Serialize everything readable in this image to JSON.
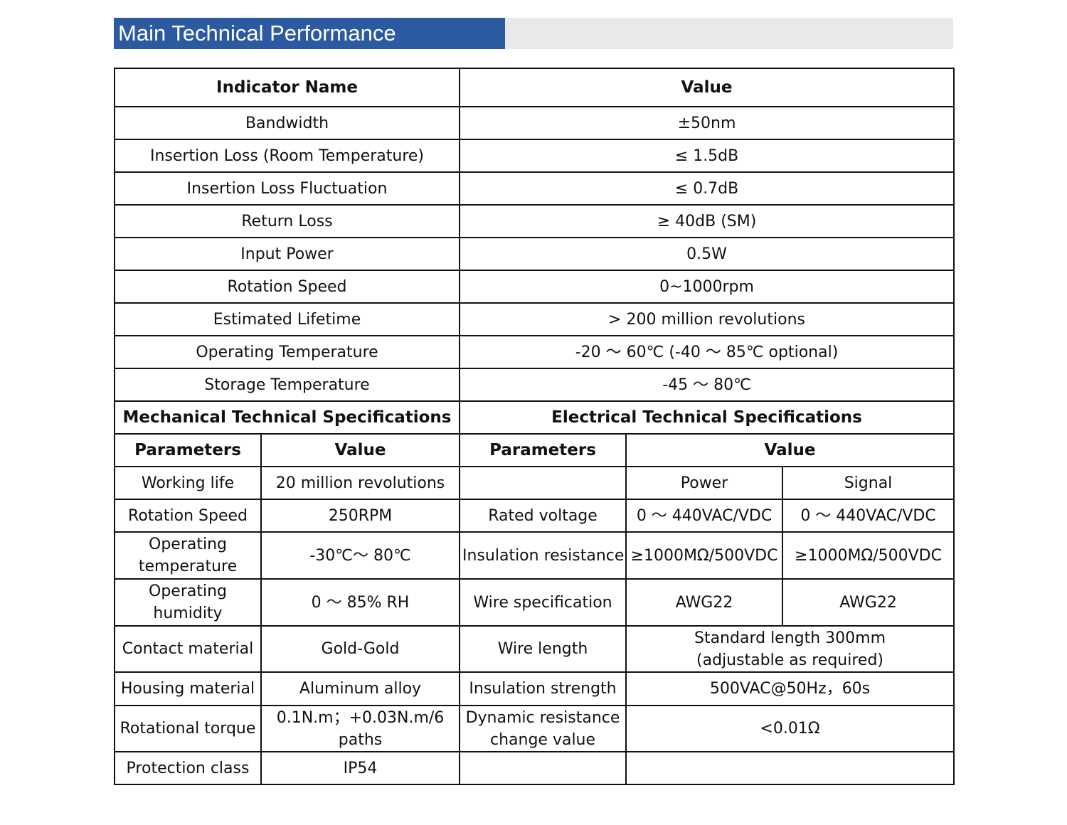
{
  "header": {
    "title": "Main Technical Performance"
  },
  "main_table": {
    "headers": [
      "Indicator Name",
      "Value"
    ],
    "rows": [
      {
        "name": "Bandwidth",
        "value": "±50nm"
      },
      {
        "name": "Insertion Loss (Room Temperature)",
        "value": "≤ 1.5dB"
      },
      {
        "name": "Insertion Loss Fluctuation",
        "value": "≤ 0.7dB"
      },
      {
        "name": "Return Loss",
        "value": "≥ 40dB (SM)"
      },
      {
        "name": "Input Power",
        "value": "0.5W"
      },
      {
        "name": "Rotation Speed",
        "value": "0~1000rpm"
      },
      {
        "name": "Estimated Lifetime",
        "value": "> 200 million revolutions"
      },
      {
        "name": "Operating Temperature",
        "value": "-20 ～ 60℃ (-40 ～ 85℃ optional)"
      },
      {
        "name": "Storage Temperature",
        "value": "-45 ～ 80℃"
      }
    ]
  },
  "sections": {
    "mechanical": "Mechanical Technical Specifications",
    "electrical": "Electrical Technical Specifications"
  },
  "sub_headers": {
    "mech_parameters": "Parameters",
    "mech_value": "Value",
    "elec_parameters": "Parameters",
    "elec_value": "Value"
  },
  "elec_value_columns": {
    "power": "Power",
    "signal": "Signal"
  },
  "mechanical_rows": [
    {
      "param": "Working life",
      "value": "20 million revolutions"
    },
    {
      "param": "Rotation Speed",
      "value": "250RPM"
    },
    {
      "param": "Operating temperature",
      "value": "-30℃～ 80℃"
    },
    {
      "param": "Operating humidity",
      "value": "0 ～ 85% RH"
    },
    {
      "param": "Contact material",
      "value": "Gold-Gold"
    },
    {
      "param": "Housing material",
      "value": "Aluminum alloy"
    },
    {
      "param": "Rotational torque",
      "value": "0.1N.m；+0.03N.m/6 paths"
    },
    {
      "param": "Protection class",
      "value": "IP54"
    }
  ],
  "electrical_rows": {
    "rated_voltage": {
      "param": "Rated voltage",
      "power": "0 ～ 440VAC/VDC",
      "signal": "0 ～ 440VAC/VDC"
    },
    "insulation_resistance": {
      "param": "Insulation resistance",
      "power": "≥1000MΩ/500VDC",
      "signal": "≥1000MΩ/500VDC"
    },
    "wire_specification": {
      "param": "Wire specification",
      "power": "AWG22",
      "signal": "AWG22"
    },
    "wire_length": {
      "param": "Wire length",
      "value": "Standard length 300mm (adjustable as required)"
    },
    "insulation_strength": {
      "param": "Insulation strength",
      "value": "500VAC@50Hz，60s"
    },
    "dynamic_resistance": {
      "param": "Dynamic resistance change value",
      "value": "<0.01Ω"
    }
  }
}
